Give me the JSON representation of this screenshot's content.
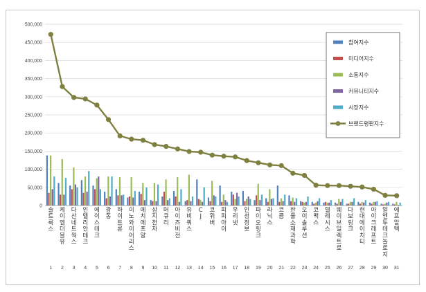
{
  "chart_data": {
    "type": "bar",
    "title": "",
    "xlabel": "",
    "ylabel": "",
    "ylim": [
      0,
      500000
    ],
    "yticks": [
      "0",
      "50,000",
      "100,000",
      "150,000",
      "200,000",
      "250,000",
      "300,000",
      "350,000",
      "400,000",
      "450,000",
      "500,000"
    ],
    "grid": true,
    "legend_position": "top-right",
    "ranks": [
      "1",
      "2",
      "3",
      "4",
      "5",
      "6",
      "7",
      "8",
      "9",
      "10",
      "11",
      "12",
      "13",
      "14",
      "15",
      "16",
      "17",
      "18",
      "19",
      "20",
      "21",
      "22",
      "23",
      "24",
      "25",
      "26",
      "27",
      "28",
      "29",
      "30",
      "31"
    ],
    "categories": [
      "솔트룩스",
      "케이엠더블유",
      "다산네트웍스",
      "인텔리안테크",
      "에이스테크",
      "광동",
      "하이트론",
      "이노와이어리스",
      "에치에프알",
      "삼지전자",
      "머큐리",
      "아이즈비전",
      "유비쿼스",
      "CJ",
      "코위버",
      "피피아이",
      "우리넷",
      "인성정보",
      "파이오링크",
      "라닉스",
      "코콤",
      "한울소재과학",
      "오이솔루션",
      "코맥스",
      "텔레시스",
      "웨이브일렉트로",
      "다보링크",
      "현대에이치티",
      "아이크래프트",
      "알엔투테크놀로지",
      "에프알텍"
    ],
    "series": [
      {
        "name": "참여지수",
        "color": "#4f81bd",
        "values": [
          138000,
          62000,
          55000,
          70000,
          55000,
          38000,
          45000,
          22000,
          38000,
          15000,
          25000,
          40000,
          12000,
          72000,
          22000,
          55000,
          38000,
          40000,
          15000,
          20000,
          55000,
          28000,
          12000,
          10000,
          8000,
          8000,
          5000,
          10000,
          8000,
          5000,
          5000
        ]
      },
      {
        "name": "미디어지수",
        "color": "#c0504d",
        "values": [
          35000,
          30000,
          45000,
          35000,
          45000,
          20000,
          28000,
          25000,
          32000,
          12000,
          38000,
          25000,
          15000,
          18000,
          12000,
          10000,
          30000,
          12000,
          28000,
          10000,
          10000,
          12000,
          10000,
          5000,
          10000,
          5000,
          5000,
          5000,
          5000,
          3000,
          3000
        ]
      },
      {
        "name": "소통지수",
        "color": "#9bbb59",
        "values": [
          138000,
          128000,
          105000,
          80000,
          75000,
          80000,
          78000,
          78000,
          62000,
          62000,
          72000,
          78000,
          85000,
          15000,
          68000,
          30000,
          18000,
          18000,
          60000,
          45000,
          20000,
          22000,
          8000,
          8000,
          8000,
          18000,
          10000,
          10000,
          10000,
          5000,
          10000
        ]
      },
      {
        "name": "커뮤니티지수",
        "color": "#8064a2",
        "values": [
          45000,
          30000,
          58000,
          38000,
          80000,
          25000,
          28000,
          22000,
          15000,
          12000,
          15000,
          10000,
          12000,
          10000,
          28000,
          15000,
          35000,
          25000,
          15000,
          18000,
          12000,
          10000,
          10000,
          12000,
          8000,
          10000,
          10000,
          8000,
          10000,
          8000,
          2000
        ]
      },
      {
        "name": "시장지수",
        "color": "#4bacc6",
        "values": [
          80000,
          76000,
          50000,
          95000,
          45000,
          80000,
          30000,
          40000,
          50000,
          58000,
          20000,
          45000,
          25000,
          50000,
          25000,
          10000,
          25000,
          18000,
          30000,
          20000,
          30000,
          20000,
          25000,
          20000,
          15000,
          18000,
          20000,
          15000,
          12000,
          10000,
          8000
        ]
      }
    ],
    "line": {
      "name": "브랜드평판지수",
      "color": "#7f7f3f",
      "values": [
        472000,
        328000,
        298000,
        294000,
        277000,
        237000,
        192000,
        183000,
        180000,
        168000,
        163000,
        156000,
        149000,
        147000,
        139000,
        136000,
        134000,
        124000,
        118000,
        112000,
        110000,
        89000,
        83000,
        56000,
        55000,
        55000,
        53000,
        51000,
        45000,
        28000,
        27000
      ]
    }
  }
}
